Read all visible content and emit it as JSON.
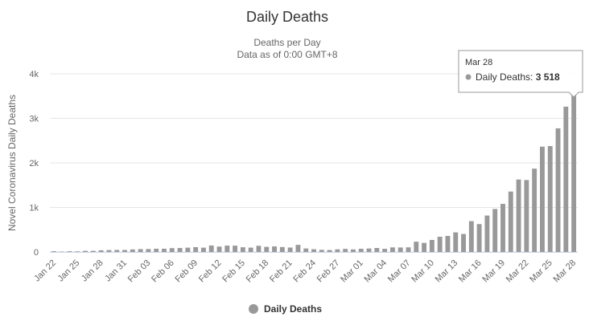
{
  "chart_data": {
    "type": "bar",
    "title": "Daily Deaths",
    "subtitle": [
      "Deaths per Day",
      "Data as of 0:00 GMT+8"
    ],
    "y_axis_label": "Novel Coronavirus Daily Deaths",
    "categories": [
      "Jan 22",
      null,
      null,
      "Jan 25",
      null,
      null,
      "Jan 28",
      null,
      null,
      "Jan 31",
      null,
      null,
      "Feb 03",
      null,
      null,
      "Feb 06",
      null,
      null,
      "Feb 09",
      null,
      null,
      "Feb 12",
      null,
      null,
      "Feb 15",
      null,
      null,
      "Feb 18",
      null,
      null,
      "Feb 21",
      null,
      null,
      "Feb 24",
      null,
      null,
      "Feb 27",
      null,
      null,
      "Mar 01",
      null,
      null,
      "Mar 04",
      null,
      null,
      "Mar 07",
      null,
      null,
      "Mar 10",
      null,
      null,
      "Mar 13",
      null,
      null,
      "Mar 16",
      null,
      null,
      "Mar 19",
      null,
      null,
      "Mar 22",
      null,
      null,
      "Mar 25",
      null,
      null,
      "Mar 28"
    ],
    "series": [
      {
        "name": "Daily Deaths",
        "color": "#999999",
        "values": [
          17,
          8,
          16,
          14,
          26,
          26,
          38,
          43,
          46,
          45,
          57,
          64,
          66,
          73,
          73,
          86,
          89,
          97,
          108,
          97,
          146,
          121,
          143,
          142,
          106,
          98,
          139,
          115,
          125,
          111,
          100,
          160,
          79,
          62,
          48,
          44,
          59,
          69,
          58,
          72,
          78,
          90,
          71,
          103,
          101,
          104,
          231,
          204,
          270,
          342,
          360,
          440,
          405,
          692,
          626,
          818,
          965,
          1080,
          1357,
          1627,
          1615,
          1871,
          2365,
          2378,
          2776,
          3263,
          3518
        ],
        "value_labels": [
          null,
          null,
          null,
          null,
          null,
          null,
          null,
          null,
          null,
          null,
          null,
          null,
          null,
          null,
          null,
          null,
          null,
          null,
          null,
          null,
          null,
          null,
          null,
          null,
          null,
          null,
          null,
          null,
          null,
          null,
          null,
          null,
          null,
          null,
          null,
          null,
          null,
          null,
          null,
          null,
          null,
          null,
          null,
          null,
          null,
          null,
          null,
          null,
          null,
          null,
          null,
          null,
          null,
          null,
          null,
          null,
          null,
          null,
          null,
          null,
          null,
          null,
          null,
          null,
          null,
          null,
          "3 518"
        ]
      }
    ],
    "tooltip_index": 66,
    "ylim": [
      0,
      4000
    ],
    "yticks": [
      0,
      {
        "value": 1000,
        "label": "1k"
      },
      {
        "value": 2000,
        "label": "2k"
      },
      {
        "value": 3000,
        "label": "3k"
      },
      {
        "value": 4000,
        "label": "4k"
      }
    ],
    "grid": true,
    "legend": "bottom"
  }
}
